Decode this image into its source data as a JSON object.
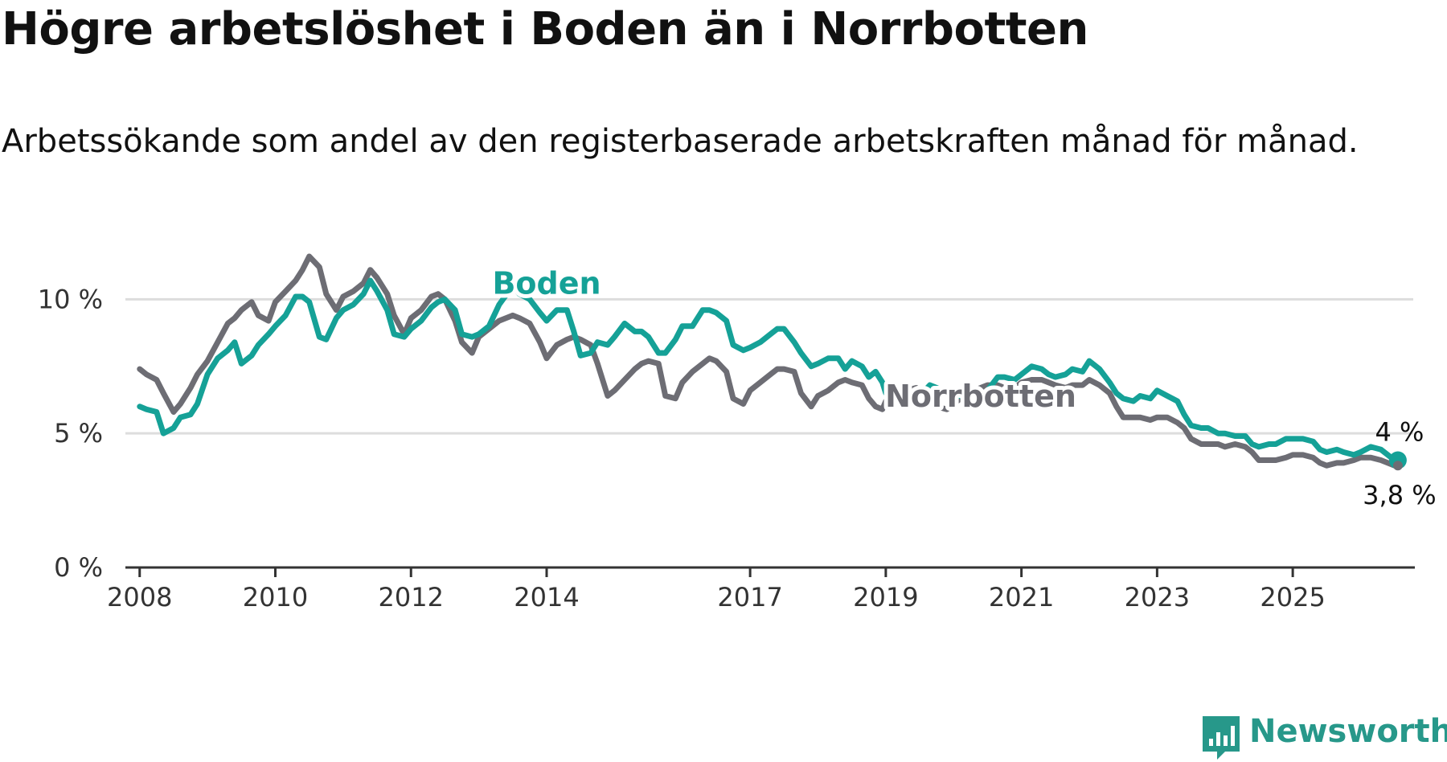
{
  "title": "Högre arbetslöshet i Boden än i Norrbotten",
  "subtitle": "Arbetssökande som andel av den registerbaserade arbetskraften månad för månad.",
  "brand": {
    "name": "Newsworthy",
    "color": "#27988a",
    "icon": "newsworthy-logo-icon"
  },
  "chart_data": {
    "type": "line",
    "title": "Högre arbetslöshet i Boden än i Norrbotten",
    "subtitle": "Arbetssökande som andel av den registerbaserade arbetskraften månad för månad.",
    "xlabel": "",
    "ylabel": "",
    "xlim": [
      2007.6,
      2026.8
    ],
    "ylim": [
      0,
      11
    ],
    "x_ticks": [
      2008,
      2010,
      2012,
      2014,
      2017,
      2019,
      2021,
      2023,
      2025
    ],
    "x_tick_labels": [
      "2008",
      "2010",
      "2012",
      "2014",
      "2017",
      "2019",
      "2021",
      "2023",
      "2025"
    ],
    "y_ticks": [
      0,
      5,
      10
    ],
    "y_tick_labels": [
      "0 %",
      "5 %",
      "10 %"
    ],
    "grid": "horizontal",
    "legend": "inline labels",
    "series": [
      {
        "name": "Boden",
        "color": "#15a197",
        "end_label": "4 %",
        "points": [
          [
            2008.0,
            6.0
          ],
          [
            2008.1,
            5.9
          ],
          [
            2008.25,
            5.8
          ],
          [
            2008.35,
            5.0
          ],
          [
            2008.5,
            5.2
          ],
          [
            2008.6,
            5.6
          ],
          [
            2008.75,
            5.7
          ],
          [
            2008.85,
            6.1
          ],
          [
            2009.0,
            7.2
          ],
          [
            2009.15,
            7.8
          ],
          [
            2009.3,
            8.1
          ],
          [
            2009.4,
            8.4
          ],
          [
            2009.5,
            7.6
          ],
          [
            2009.65,
            7.9
          ],
          [
            2009.75,
            8.3
          ],
          [
            2009.9,
            8.7
          ],
          [
            2010.0,
            9.0
          ],
          [
            2010.15,
            9.4
          ],
          [
            2010.3,
            10.1
          ],
          [
            2010.4,
            10.1
          ],
          [
            2010.5,
            9.9
          ],
          [
            2010.65,
            8.6
          ],
          [
            2010.75,
            8.5
          ],
          [
            2010.9,
            9.3
          ],
          [
            2011.0,
            9.6
          ],
          [
            2011.15,
            9.8
          ],
          [
            2011.3,
            10.2
          ],
          [
            2011.4,
            10.7
          ],
          [
            2011.5,
            10.3
          ],
          [
            2011.65,
            9.6
          ],
          [
            2011.75,
            8.7
          ],
          [
            2011.9,
            8.6
          ],
          [
            2012.0,
            8.9
          ],
          [
            2012.15,
            9.2
          ],
          [
            2012.3,
            9.7
          ],
          [
            2012.4,
            9.9
          ],
          [
            2012.5,
            10.0
          ],
          [
            2012.65,
            9.6
          ],
          [
            2012.75,
            8.7
          ],
          [
            2012.9,
            8.6
          ],
          [
            2013.0,
            8.7
          ],
          [
            2013.15,
            9.0
          ],
          [
            2013.3,
            9.8
          ],
          [
            2013.5,
            10.5
          ],
          [
            2013.6,
            10.2
          ],
          [
            2013.75,
            10.0
          ],
          [
            2013.9,
            9.5
          ],
          [
            2014.0,
            9.2
          ],
          [
            2014.15,
            9.6
          ],
          [
            2014.3,
            9.6
          ],
          [
            2014.4,
            8.8
          ],
          [
            2014.5,
            7.9
          ],
          [
            2014.65,
            8.0
          ],
          [
            2014.75,
            8.4
          ],
          [
            2014.9,
            8.3
          ],
          [
            2015.0,
            8.6
          ],
          [
            2015.15,
            9.1
          ],
          [
            2015.3,
            8.8
          ],
          [
            2015.4,
            8.8
          ],
          [
            2015.5,
            8.6
          ],
          [
            2015.65,
            8.0
          ],
          [
            2015.75,
            8.0
          ],
          [
            2015.9,
            8.5
          ],
          [
            2016.0,
            9.0
          ],
          [
            2016.15,
            9.0
          ],
          [
            2016.3,
            9.6
          ],
          [
            2016.4,
            9.6
          ],
          [
            2016.5,
            9.5
          ],
          [
            2016.65,
            9.2
          ],
          [
            2016.75,
            8.3
          ],
          [
            2016.9,
            8.1
          ],
          [
            2017.0,
            8.2
          ],
          [
            2017.15,
            8.4
          ],
          [
            2017.3,
            8.7
          ],
          [
            2017.4,
            8.9
          ],
          [
            2017.5,
            8.9
          ],
          [
            2017.65,
            8.4
          ],
          [
            2017.75,
            8.0
          ],
          [
            2017.9,
            7.5
          ],
          [
            2018.0,
            7.6
          ],
          [
            2018.15,
            7.8
          ],
          [
            2018.3,
            7.8
          ],
          [
            2018.4,
            7.4
          ],
          [
            2018.5,
            7.7
          ],
          [
            2018.65,
            7.5
          ],
          [
            2018.75,
            7.1
          ],
          [
            2018.85,
            7.3
          ],
          [
            2018.95,
            6.9
          ],
          [
            2019.0,
            6.5
          ],
          [
            2019.15,
            6.3
          ],
          [
            2019.3,
            6.4
          ],
          [
            2019.45,
            6.3
          ],
          [
            2019.5,
            6.4
          ],
          [
            2019.65,
            6.8
          ],
          [
            2019.75,
            6.7
          ],
          [
            2019.9,
            6.5
          ],
          [
            2020.0,
            6.4
          ],
          [
            2020.15,
            6.4
          ],
          [
            2020.3,
            6.2
          ],
          [
            2020.5,
            6.6
          ],
          [
            2020.65,
            7.1
          ],
          [
            2020.75,
            7.1
          ],
          [
            2020.9,
            7.0
          ],
          [
            2021.0,
            7.2
          ],
          [
            2021.15,
            7.5
          ],
          [
            2021.3,
            7.4
          ],
          [
            2021.4,
            7.2
          ],
          [
            2021.5,
            7.1
          ],
          [
            2021.65,
            7.2
          ],
          [
            2021.75,
            7.4
          ],
          [
            2021.9,
            7.3
          ],
          [
            2022.0,
            7.7
          ],
          [
            2022.15,
            7.4
          ],
          [
            2022.3,
            6.9
          ],
          [
            2022.4,
            6.5
          ],
          [
            2022.5,
            6.3
          ],
          [
            2022.65,
            6.2
          ],
          [
            2022.75,
            6.4
          ],
          [
            2022.9,
            6.3
          ],
          [
            2023.0,
            6.6
          ],
          [
            2023.15,
            6.4
          ],
          [
            2023.3,
            6.2
          ],
          [
            2023.4,
            5.7
          ],
          [
            2023.5,
            5.3
          ],
          [
            2023.65,
            5.2
          ],
          [
            2023.75,
            5.2
          ],
          [
            2023.9,
            5.0
          ],
          [
            2024.0,
            5.0
          ],
          [
            2024.15,
            4.9
          ],
          [
            2024.3,
            4.9
          ],
          [
            2024.4,
            4.6
          ],
          [
            2024.5,
            4.5
          ],
          [
            2024.65,
            4.6
          ],
          [
            2024.75,
            4.6
          ],
          [
            2024.9,
            4.8
          ],
          [
            2025.0,
            4.8
          ],
          [
            2025.15,
            4.8
          ],
          [
            2025.3,
            4.7
          ],
          [
            2025.4,
            4.4
          ],
          [
            2025.5,
            4.3
          ],
          [
            2025.65,
            4.4
          ],
          [
            2025.75,
            4.3
          ],
          [
            2025.9,
            4.2
          ],
          [
            2026.0,
            4.3
          ],
          [
            2026.15,
            4.5
          ],
          [
            2026.3,
            4.4
          ],
          [
            2026.4,
            4.2
          ],
          [
            2026.5,
            4.0
          ],
          [
            2026.55,
            4.0
          ]
        ]
      },
      {
        "name": "Norrbotten",
        "color": "#6d6d74",
        "end_label": "3,8 %",
        "points": [
          [
            2008.0,
            7.4
          ],
          [
            2008.1,
            7.2
          ],
          [
            2008.25,
            7.0
          ],
          [
            2008.35,
            6.5
          ],
          [
            2008.5,
            5.8
          ],
          [
            2008.6,
            6.1
          ],
          [
            2008.75,
            6.7
          ],
          [
            2008.85,
            7.2
          ],
          [
            2009.0,
            7.7
          ],
          [
            2009.15,
            8.4
          ],
          [
            2009.3,
            9.1
          ],
          [
            2009.4,
            9.3
          ],
          [
            2009.5,
            9.6
          ],
          [
            2009.65,
            9.9
          ],
          [
            2009.75,
            9.4
          ],
          [
            2009.9,
            9.2
          ],
          [
            2010.0,
            9.9
          ],
          [
            2010.15,
            10.3
          ],
          [
            2010.3,
            10.7
          ],
          [
            2010.4,
            11.1
          ],
          [
            2010.5,
            11.6
          ],
          [
            2010.65,
            11.2
          ],
          [
            2010.75,
            10.2
          ],
          [
            2010.9,
            9.6
          ],
          [
            2011.0,
            10.1
          ],
          [
            2011.15,
            10.3
          ],
          [
            2011.3,
            10.6
          ],
          [
            2011.4,
            11.1
          ],
          [
            2011.5,
            10.8
          ],
          [
            2011.65,
            10.2
          ],
          [
            2011.75,
            9.4
          ],
          [
            2011.9,
            8.7
          ],
          [
            2012.0,
            9.3
          ],
          [
            2012.15,
            9.6
          ],
          [
            2012.3,
            10.1
          ],
          [
            2012.4,
            10.2
          ],
          [
            2012.5,
            10.0
          ],
          [
            2012.65,
            9.2
          ],
          [
            2012.75,
            8.4
          ],
          [
            2012.9,
            8.0
          ],
          [
            2013.0,
            8.6
          ],
          [
            2013.15,
            8.9
          ],
          [
            2013.3,
            9.2
          ],
          [
            2013.5,
            9.4
          ],
          [
            2013.6,
            9.3
          ],
          [
            2013.75,
            9.1
          ],
          [
            2013.9,
            8.4
          ],
          [
            2014.0,
            7.8
          ],
          [
            2014.15,
            8.3
          ],
          [
            2014.3,
            8.5
          ],
          [
            2014.4,
            8.6
          ],
          [
            2014.5,
            8.5
          ],
          [
            2014.65,
            8.3
          ],
          [
            2014.75,
            7.6
          ],
          [
            2014.9,
            6.4
          ],
          [
            2015.0,
            6.6
          ],
          [
            2015.15,
            7.0
          ],
          [
            2015.3,
            7.4
          ],
          [
            2015.4,
            7.6
          ],
          [
            2015.5,
            7.7
          ],
          [
            2015.65,
            7.6
          ],
          [
            2015.75,
            6.4
          ],
          [
            2015.9,
            6.3
          ],
          [
            2016.0,
            6.9
          ],
          [
            2016.15,
            7.3
          ],
          [
            2016.3,
            7.6
          ],
          [
            2016.4,
            7.8
          ],
          [
            2016.5,
            7.7
          ],
          [
            2016.65,
            7.3
          ],
          [
            2016.75,
            6.3
          ],
          [
            2016.9,
            6.1
          ],
          [
            2017.0,
            6.6
          ],
          [
            2017.15,
            6.9
          ],
          [
            2017.3,
            7.2
          ],
          [
            2017.4,
            7.4
          ],
          [
            2017.5,
            7.4
          ],
          [
            2017.65,
            7.3
          ],
          [
            2017.75,
            6.5
          ],
          [
            2017.9,
            6.0
          ],
          [
            2018.0,
            6.4
          ],
          [
            2018.15,
            6.6
          ],
          [
            2018.3,
            6.9
          ],
          [
            2018.4,
            7.0
          ],
          [
            2018.5,
            6.9
          ],
          [
            2018.65,
            6.8
          ],
          [
            2018.75,
            6.3
          ],
          [
            2018.85,
            6.0
          ],
          [
            2018.95,
            5.9
          ],
          [
            2019.0,
            6.2
          ],
          [
            2019.15,
            6.4
          ],
          [
            2019.3,
            6.6
          ],
          [
            2019.45,
            6.7
          ],
          [
            2019.5,
            6.6
          ],
          [
            2019.65,
            6.5
          ],
          [
            2019.75,
            6.0
          ],
          [
            2019.9,
            5.9
          ],
          [
            2020.0,
            6.1
          ],
          [
            2020.15,
            6.4
          ],
          [
            2020.3,
            6.6
          ],
          [
            2020.5,
            6.8
          ],
          [
            2020.65,
            6.8
          ],
          [
            2020.75,
            6.7
          ],
          [
            2020.9,
            6.7
          ],
          [
            2021.0,
            6.9
          ],
          [
            2021.15,
            7.0
          ],
          [
            2021.3,
            7.0
          ],
          [
            2021.4,
            6.9
          ],
          [
            2021.5,
            6.8
          ],
          [
            2021.65,
            6.7
          ],
          [
            2021.75,
            6.8
          ],
          [
            2021.9,
            6.8
          ],
          [
            2022.0,
            7.0
          ],
          [
            2022.15,
            6.8
          ],
          [
            2022.3,
            6.5
          ],
          [
            2022.4,
            6.0
          ],
          [
            2022.5,
            5.6
          ],
          [
            2022.65,
            5.6
          ],
          [
            2022.75,
            5.6
          ],
          [
            2022.9,
            5.5
          ],
          [
            2023.0,
            5.6
          ],
          [
            2023.15,
            5.6
          ],
          [
            2023.3,
            5.4
          ],
          [
            2023.4,
            5.2
          ],
          [
            2023.5,
            4.8
          ],
          [
            2023.65,
            4.6
          ],
          [
            2023.75,
            4.6
          ],
          [
            2023.9,
            4.6
          ],
          [
            2024.0,
            4.5
          ],
          [
            2024.15,
            4.6
          ],
          [
            2024.3,
            4.5
          ],
          [
            2024.4,
            4.3
          ],
          [
            2024.5,
            4.0
          ],
          [
            2024.65,
            4.0
          ],
          [
            2024.75,
            4.0
          ],
          [
            2024.9,
            4.1
          ],
          [
            2025.0,
            4.2
          ],
          [
            2025.15,
            4.2
          ],
          [
            2025.3,
            4.1
          ],
          [
            2025.4,
            3.9
          ],
          [
            2025.5,
            3.8
          ],
          [
            2025.65,
            3.9
          ],
          [
            2025.75,
            3.9
          ],
          [
            2025.9,
            4.0
          ],
          [
            2026.0,
            4.1
          ],
          [
            2026.15,
            4.1
          ],
          [
            2026.3,
            4.0
          ],
          [
            2026.4,
            3.9
          ],
          [
            2026.5,
            3.8
          ],
          [
            2026.55,
            3.8
          ]
        ]
      }
    ],
    "inline_labels": [
      {
        "series": "Boden",
        "text": "Boden",
        "x": 2014.0,
        "y": 10.2
      },
      {
        "series": "Norrbotten",
        "text": "Norrbotten",
        "x": 2020.4,
        "y": 6.0
      }
    ]
  }
}
